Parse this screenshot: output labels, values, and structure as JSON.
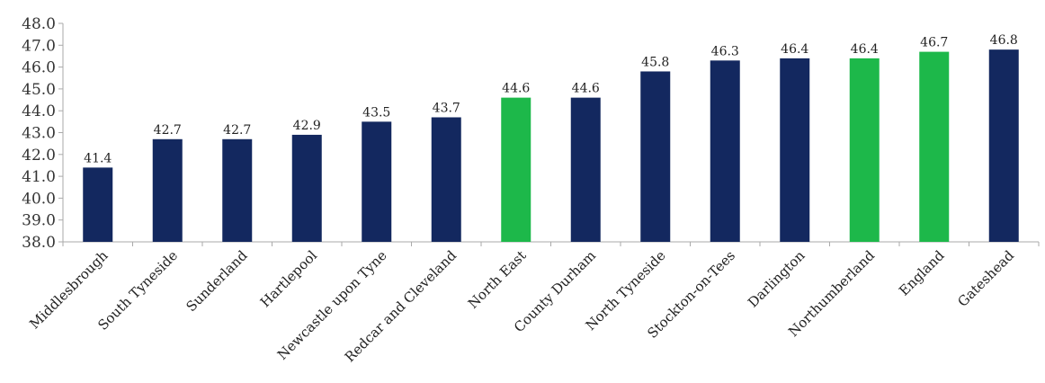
{
  "chart_data": {
    "type": "bar",
    "categories": [
      "Middlesbrough",
      "South Tyneside",
      "Sunderland",
      "Hartlepool",
      "Newcastle upon Tyne",
      "Redcar and Cleveland",
      "North East",
      "County Durham",
      "North Tyneside",
      "Stockton-on-Tees",
      "Darlington",
      "Northumberland",
      "England",
      "Gateshead"
    ],
    "values": [
      41.4,
      42.7,
      42.7,
      42.9,
      43.5,
      43.7,
      44.6,
      44.6,
      45.8,
      46.3,
      46.4,
      46.4,
      46.7,
      46.8
    ],
    "value_labels": [
      "41.4",
      "42.7",
      "42.7",
      "42.9",
      "43.5",
      "43.7",
      "44.6",
      "44.6",
      "45.8",
      "46.3",
      "46.4",
      "46.4",
      "46.7",
      "46.8"
    ],
    "highlighted": [
      "North East",
      "Northumberland",
      "England"
    ],
    "ylim": [
      38.0,
      48.0
    ],
    "yticks": [
      "38.0",
      "39.0",
      "40.0",
      "41.0",
      "42.0",
      "43.0",
      "44.0",
      "45.0",
      "46.0",
      "47.0",
      "48.0"
    ],
    "xlabel": "",
    "ylabel": "",
    "grid": false,
    "legend": "none",
    "colors": {
      "default_bar": "#13285f",
      "highlight_bar": "#1db84a",
      "axis": "#aaaaaa"
    }
  }
}
